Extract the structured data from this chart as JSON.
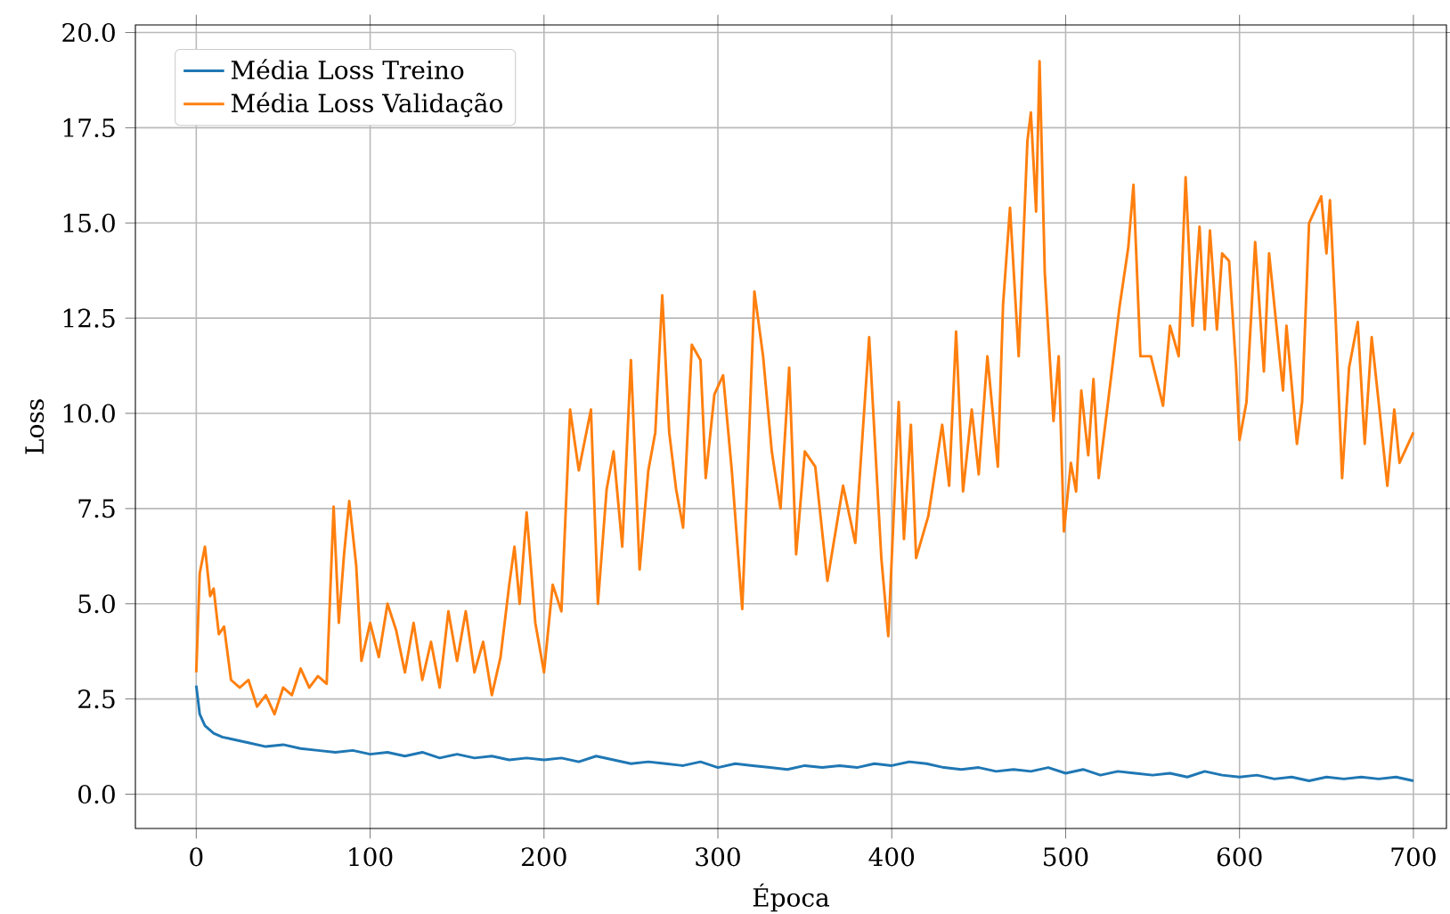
{
  "chart_data": {
    "type": "line",
    "xlabel": "Época",
    "ylabel": "Loss",
    "xlim": [
      -35,
      719
    ],
    "ylim": [
      -0.9,
      20.2
    ],
    "xticks": [
      0,
      100,
      200,
      300,
      400,
      500,
      600,
      700
    ],
    "yticks": [
      {
        "value": 0,
        "label": "0.0"
      },
      {
        "value": 2.5,
        "label": "2.5"
      },
      {
        "value": 5,
        "label": "5.0"
      },
      {
        "value": 7.5,
        "label": "7.5"
      },
      {
        "value": 10,
        "label": "10.0"
      },
      {
        "value": 12.5,
        "label": "12.5"
      },
      {
        "value": 15,
        "label": "15.0"
      },
      {
        "value": 17.5,
        "label": "17.5"
      },
      {
        "value": 20,
        "label": "20.0"
      }
    ],
    "grid": true,
    "legend": "top left",
    "series": [
      {
        "name": "Média Loss Treino",
        "color": "#1f77b4",
        "x": [
          0,
          2,
          5,
          10,
          15,
          20,
          30,
          40,
          50,
          60,
          70,
          80,
          90,
          100,
          110,
          120,
          130,
          140,
          150,
          160,
          170,
          180,
          190,
          200,
          210,
          220,
          230,
          240,
          250,
          260,
          270,
          280,
          290,
          300,
          310,
          320,
          330,
          340,
          350,
          360,
          370,
          380,
          390,
          400,
          410,
          420,
          430,
          440,
          450,
          460,
          470,
          480,
          490,
          500,
          510,
          520,
          530,
          540,
          550,
          560,
          570,
          580,
          590,
          600,
          610,
          620,
          630,
          640,
          650,
          660,
          670,
          680,
          690,
          700
        ],
        "values": [
          2.85,
          2.1,
          1.8,
          1.6,
          1.5,
          1.45,
          1.35,
          1.25,
          1.3,
          1.2,
          1.15,
          1.1,
          1.15,
          1.05,
          1.1,
          1.0,
          1.1,
          0.95,
          1.05,
          0.95,
          1.0,
          0.9,
          0.95,
          0.9,
          0.95,
          0.85,
          1.0,
          0.9,
          0.8,
          0.85,
          0.8,
          0.75,
          0.85,
          0.7,
          0.8,
          0.75,
          0.7,
          0.65,
          0.75,
          0.7,
          0.75,
          0.7,
          0.8,
          0.75,
          0.85,
          0.8,
          0.7,
          0.65,
          0.7,
          0.6,
          0.65,
          0.6,
          0.7,
          0.55,
          0.65,
          0.5,
          0.6,
          0.55,
          0.5,
          0.55,
          0.45,
          0.6,
          0.5,
          0.45,
          0.5,
          0.4,
          0.45,
          0.35,
          0.45,
          0.4,
          0.45,
          0.4,
          0.45,
          0.35
        ]
      },
      {
        "name": "Média Loss Validação",
        "color": "#ff7f0e",
        "x": [
          0,
          2,
          5,
          8,
          10,
          13,
          16,
          20,
          25,
          30,
          35,
          40,
          45,
          50,
          55,
          60,
          65,
          70,
          75,
          79,
          82,
          85,
          88,
          92,
          95,
          100,
          105,
          110,
          115,
          120,
          125,
          130,
          135,
          140,
          145,
          150,
          155,
          160,
          165,
          170,
          175,
          180,
          183,
          186,
          190,
          195,
          200,
          205,
          210,
          215,
          220,
          227,
          231,
          236,
          240,
          245,
          250,
          255,
          260,
          264,
          268,
          272,
          276,
          280,
          285,
          290,
          293,
          298,
          303,
          308,
          314,
          318,
          321,
          326,
          331,
          336,
          341,
          345,
          350,
          356,
          363,
          372,
          379,
          387,
          394,
          398,
          404,
          407,
          411,
          414,
          421,
          429,
          433,
          437,
          441,
          446,
          450,
          455,
          461,
          464,
          468,
          473,
          478,
          480,
          483,
          485,
          488,
          493,
          496,
          499,
          503,
          506,
          509,
          513,
          516,
          519,
          526,
          531,
          536,
          539,
          543,
          549,
          556,
          560,
          565,
          569,
          573,
          577,
          580,
          583,
          587,
          590,
          594,
          598,
          600,
          604,
          609,
          614,
          617,
          625,
          627,
          633,
          636,
          640,
          647,
          650,
          652,
          655,
          659,
          663,
          668,
          672,
          676,
          680,
          685,
          689,
          692,
          695,
          700
        ],
        "values": [
          3.2,
          5.8,
          6.5,
          5.2,
          5.4,
          4.2,
          4.4,
          3.0,
          2.8,
          3.0,
          2.3,
          2.6,
          2.1,
          2.8,
          2.6,
          3.3,
          2.8,
          3.1,
          2.9,
          7.55,
          4.5,
          6.3,
          7.7,
          6.0,
          3.5,
          4.5,
          3.6,
          5.0,
          4.3,
          3.2,
          4.5,
          3.0,
          4.0,
          2.8,
          4.8,
          3.5,
          4.8,
          3.2,
          4.0,
          2.6,
          3.6,
          5.5,
          6.5,
          5.0,
          7.4,
          4.5,
          3.2,
          5.5,
          4.8,
          10.1,
          8.5,
          10.1,
          5.0,
          8.0,
          9.0,
          6.5,
          11.4,
          5.9,
          8.5,
          9.5,
          13.1,
          9.5,
          8.0,
          7.0,
          11.8,
          11.4,
          8.3,
          10.5,
          11.0,
          8.5,
          4.86,
          9.5,
          13.2,
          11.5,
          9.0,
          7.5,
          11.2,
          6.3,
          9.0,
          8.6,
          5.6,
          8.1,
          6.6,
          12.0,
          6.2,
          4.15,
          10.3,
          6.7,
          9.7,
          6.2,
          7.3,
          9.7,
          8.1,
          12.15,
          7.95,
          10.1,
          8.4,
          11.5,
          8.6,
          12.85,
          15.4,
          11.5,
          17.15,
          17.9,
          15.3,
          19.25,
          13.7,
          9.8,
          11.5,
          6.9,
          8.7,
          7.95,
          10.6,
          8.9,
          10.9,
          8.3,
          10.9,
          12.8,
          14.35,
          16.0,
          11.5,
          11.5,
          10.2,
          12.3,
          11.5,
          16.2,
          12.3,
          14.9,
          12.2,
          14.8,
          12.2,
          14.2,
          14.0,
          11.2,
          9.3,
          10.3,
          14.5,
          11.1,
          14.2,
          10.6,
          12.3,
          9.2,
          10.3,
          15.0,
          15.7,
          14.2,
          15.6,
          12.8,
          8.3,
          11.2,
          12.4,
          9.2,
          12.0,
          10.3,
          8.1,
          10.1,
          8.7,
          9.0,
          9.5
        ]
      }
    ]
  }
}
